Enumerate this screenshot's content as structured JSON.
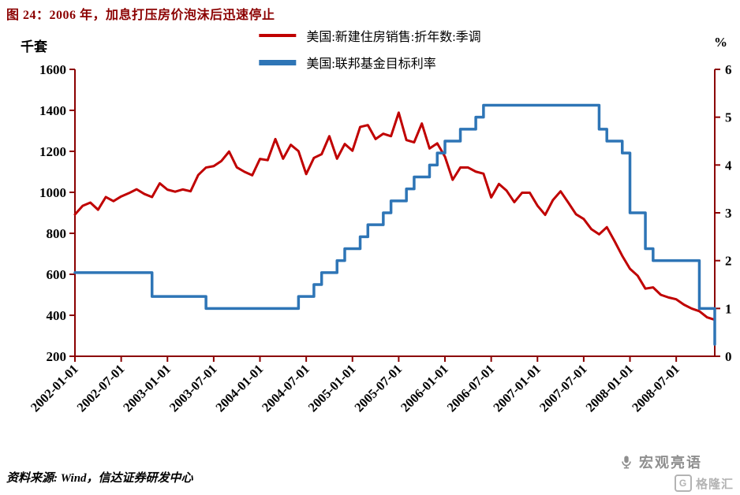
{
  "title": "图 24：2006 年，加息打压房价泡沫后迅速停止",
  "legend": [
    {
      "label": "美国:新建住房销售:折年数:季调",
      "color": "#c00000"
    },
    {
      "label": "美国:联邦基金目标利率",
      "color": "#2e75b6"
    }
  ],
  "axis_units": {
    "left": "千套",
    "right": "%"
  },
  "source": "资料来源: Wind，信达证券研发中心",
  "watermark": {
    "brand": "宏观亮语",
    "logo": "格隆汇",
    "logo_letter": "G"
  },
  "colors": {
    "axis": "#8b0000",
    "title": "#8b0000",
    "red_series": "#c00000",
    "blue_series": "#2e75b6"
  },
  "chart_data": {
    "type": "line",
    "title": "图 24：2006 年，加息打压房价泡沫后迅速停止",
    "x_monthly_start": "2002-01",
    "x_monthly_end": "2008-12",
    "x_tick_labels": [
      "2002-01-01",
      "2002-07-01",
      "2003-01-01",
      "2003-07-01",
      "2004-01-01",
      "2004-07-01",
      "2005-01-01",
      "2005-07-01",
      "2006-01-01",
      "2006-07-01",
      "2007-01-01",
      "2007-07-01",
      "2008-01-01",
      "2008-07-01"
    ],
    "x_tick_month_step": 6,
    "y_left": {
      "min": 200,
      "max": 1600,
      "step": 200,
      "label": "千套"
    },
    "y_right": {
      "min": 0,
      "max": 6,
      "step": 1,
      "label": "%"
    },
    "grid": false,
    "legend_position": "top-center",
    "series": [
      {
        "name": "美国:新建住房销售:折年数:季调",
        "axis": "left",
        "color": "#c00000",
        "style": "line",
        "width": 3,
        "values": [
          892,
          934,
          950,
          915,
          977,
          957,
          980,
          996,
          1015,
          992,
          977,
          1044,
          1013,
          1003,
          1014,
          1005,
          1085,
          1121,
          1128,
          1153,
          1199,
          1122,
          1100,
          1083,
          1163,
          1157,
          1260,
          1164,
          1232,
          1201,
          1089,
          1168,
          1186,
          1274,
          1164,
          1236,
          1203,
          1319,
          1328,
          1260,
          1286,
          1274,
          1389,
          1255,
          1244,
          1336,
          1214,
          1239,
          1174,
          1061,
          1121,
          1121,
          1101,
          1091,
          975,
          1041,
          1008,
          952,
          998,
          998,
          935,
          890,
          962,
          1005,
          950,
          893,
          870,
          820,
          795,
          830,
          762,
          690,
          627,
          593,
          530,
          536,
          500,
          487,
          478,
          452,
          433,
          420,
          390,
          378
        ]
      },
      {
        "name": "美国:联邦基金目标利率",
        "axis": "right",
        "color": "#2e75b6",
        "style": "step",
        "width": 3.5,
        "values": [
          1.75,
          1.75,
          1.75,
          1.75,
          1.75,
          1.75,
          1.75,
          1.75,
          1.75,
          1.75,
          1.25,
          1.25,
          1.25,
          1.25,
          1.25,
          1.25,
          1.25,
          1.0,
          1.0,
          1.0,
          1.0,
          1.0,
          1.0,
          1.0,
          1.0,
          1.0,
          1.0,
          1.0,
          1.0,
          1.25,
          1.25,
          1.5,
          1.75,
          1.75,
          2.0,
          2.25,
          2.25,
          2.5,
          2.75,
          2.75,
          3.0,
          3.25,
          3.25,
          3.5,
          3.75,
          3.75,
          4.0,
          4.25,
          4.5,
          4.5,
          4.75,
          4.75,
          5.0,
          5.25,
          5.25,
          5.25,
          5.25,
          5.25,
          5.25,
          5.25,
          5.25,
          5.25,
          5.25,
          5.25,
          5.25,
          5.25,
          5.25,
          5.25,
          4.75,
          4.5,
          4.5,
          4.25,
          3.0,
          3.0,
          2.25,
          2.0,
          2.0,
          2.0,
          2.0,
          2.0,
          2.0,
          1.0,
          1.0,
          0.25
        ]
      }
    ]
  }
}
